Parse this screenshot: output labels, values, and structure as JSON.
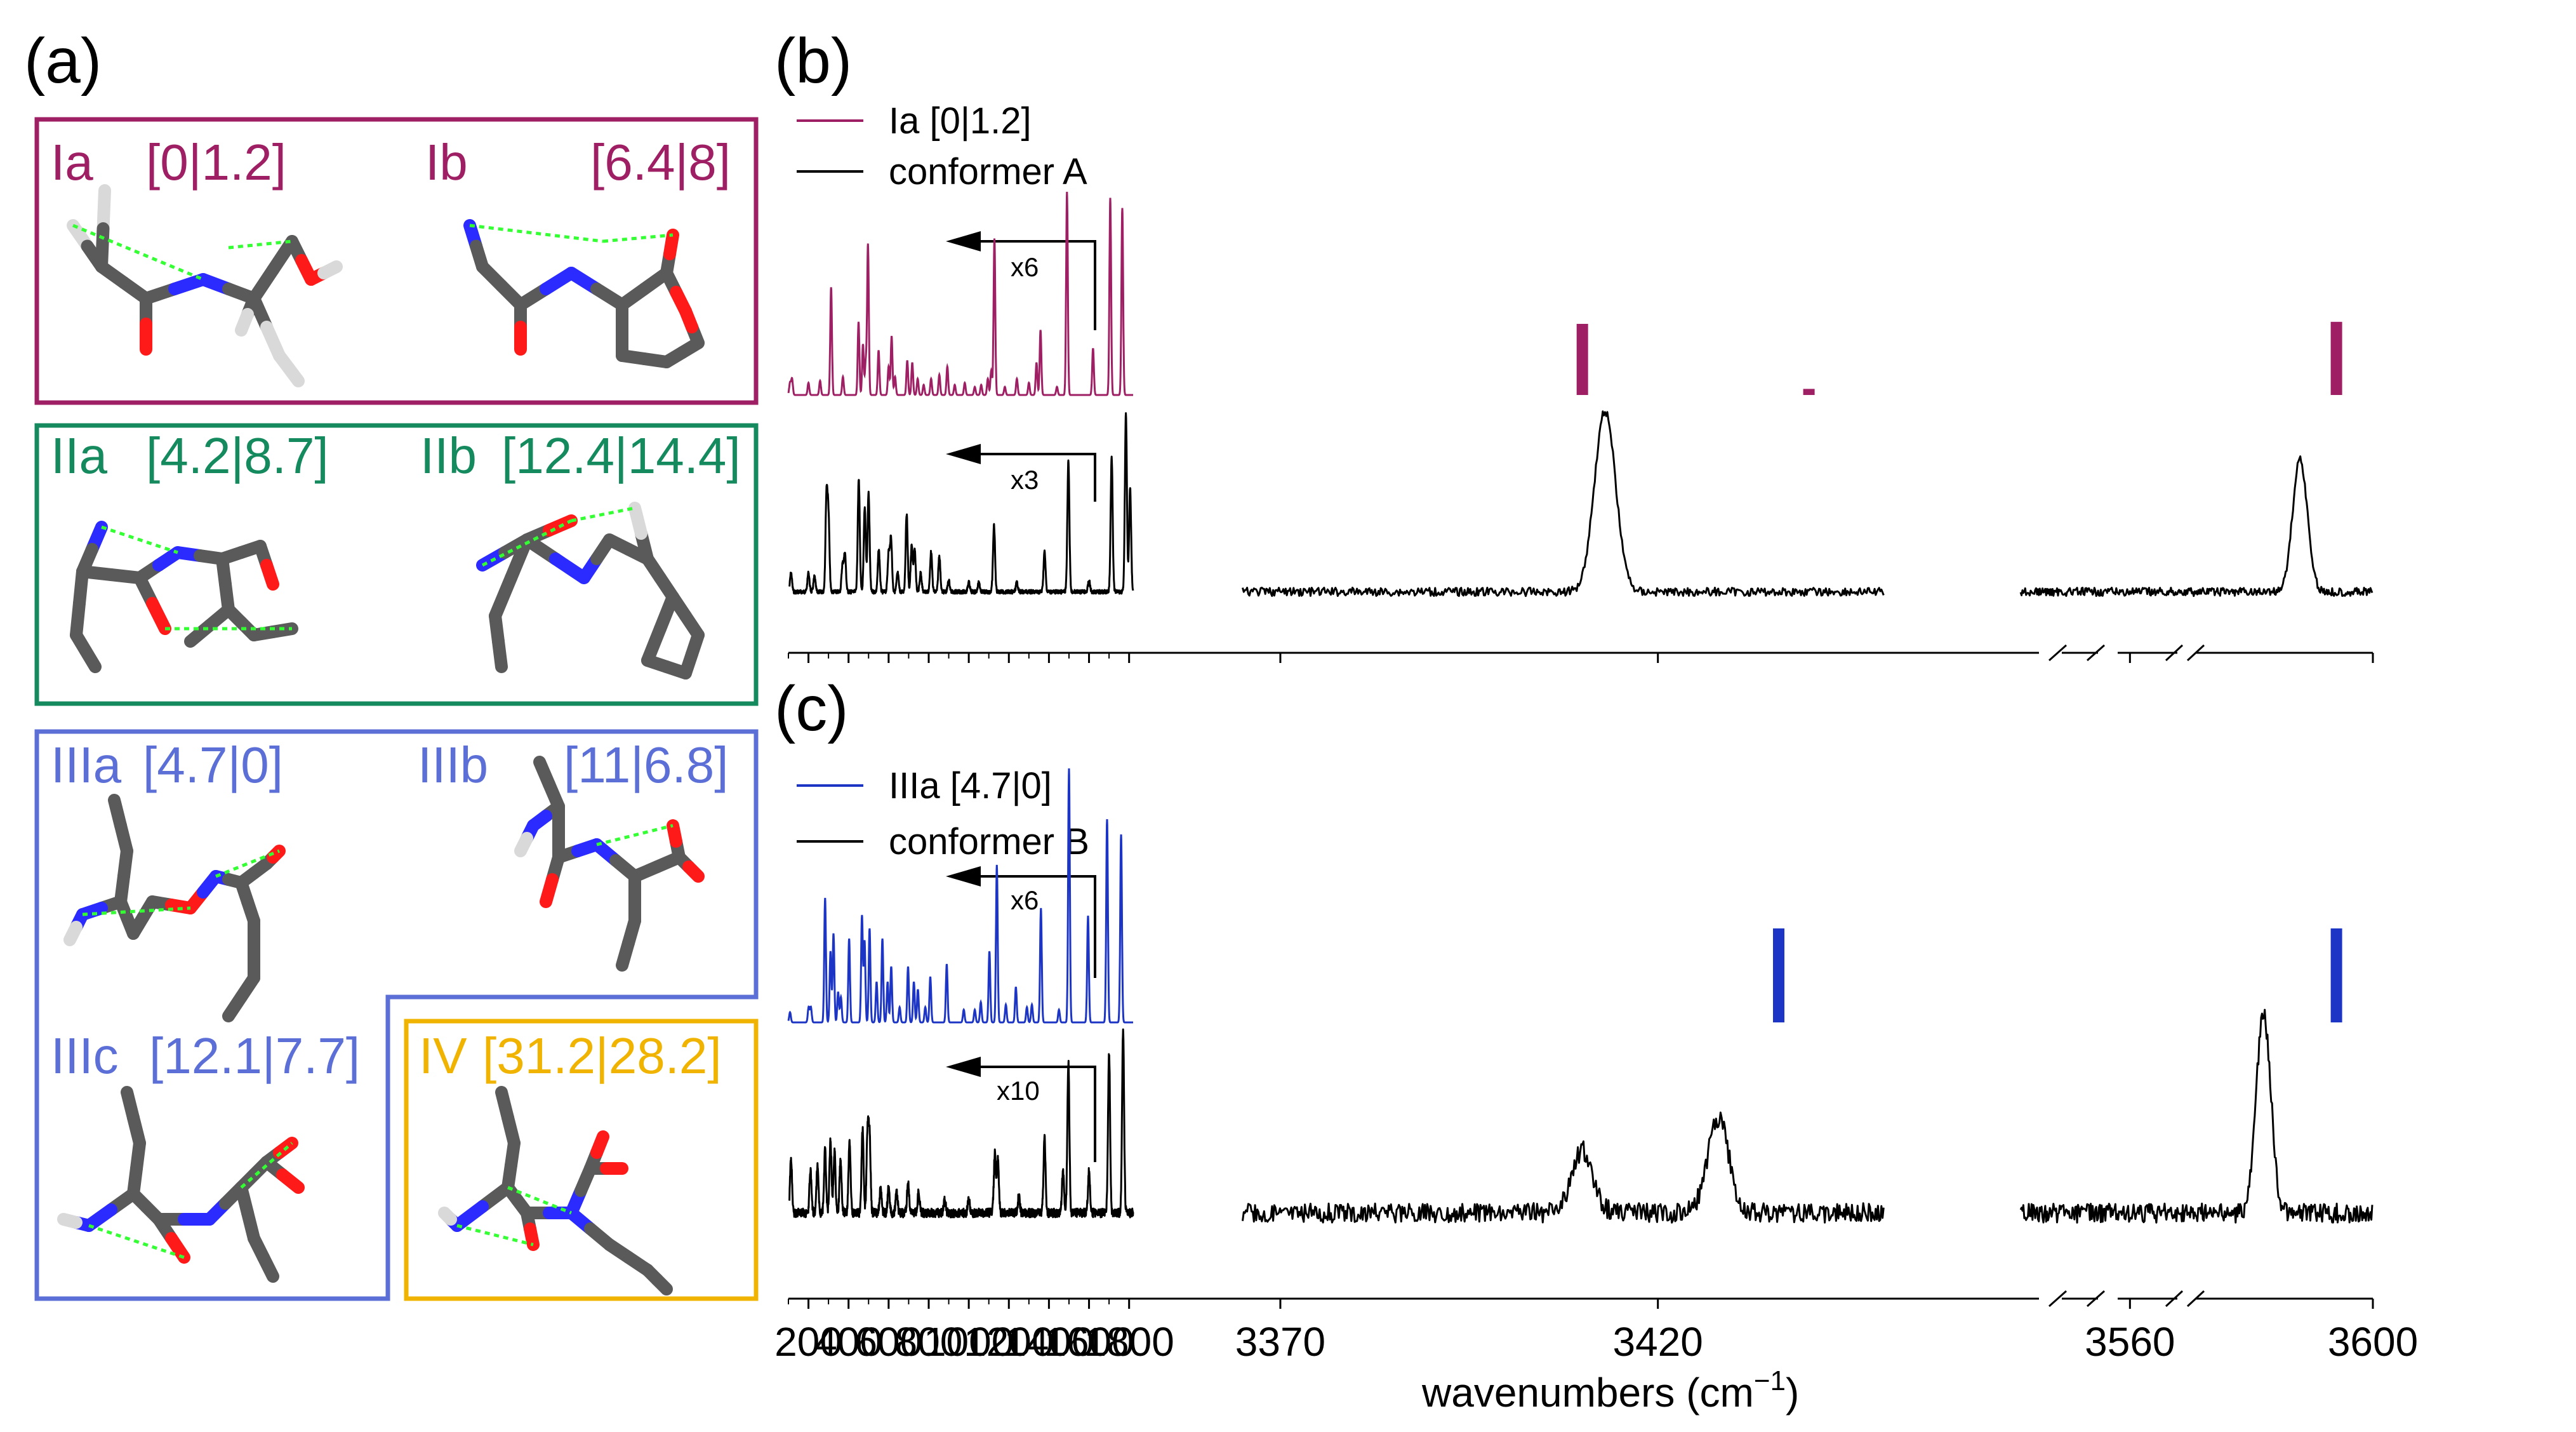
{
  "panels": {
    "a": "(a)",
    "b": "(b)",
    "c": "(c)"
  },
  "colors": {
    "magenta": "#9e1f63",
    "green": "#148a5e",
    "blue": "#1c35c4",
    "periwinkle": "#5c6fd6",
    "orange": "#f0b400",
    "black": "#000000"
  },
  "conformers": [
    {
      "id": "Ia",
      "name": "Ia",
      "energies": "[0|1.2]"
    },
    {
      "id": "Ib",
      "name": "Ib",
      "energies": "[6.4|8]"
    },
    {
      "id": "IIa",
      "name": "IIa",
      "energies": "[4.2|8.7]"
    },
    {
      "id": "IIb",
      "name": "IIb",
      "energies": "[12.4|14.4]"
    },
    {
      "id": "IIIa",
      "name": "IIIa",
      "energies": "[4.7|0]"
    },
    {
      "id": "IIIb",
      "name": "IIIb",
      "energies": "[11|6.8]"
    },
    {
      "id": "IIIc",
      "name": "IIIc",
      "energies": "[12.1|7.7]"
    },
    {
      "id": "IV",
      "name": "IV",
      "energies": "[31.2|28.2]"
    }
  ],
  "legend_b": {
    "calc": "Ia [0|1.2]",
    "exp": "conformer A"
  },
  "legend_c": {
    "calc": "IIIa [4.7|0]",
    "exp": "conformer B"
  },
  "scales": {
    "b_calc": "x6",
    "b_exp": "x3",
    "c_calc": "x6",
    "c_exp": "x10"
  },
  "axis": {
    "xlabel_main": "wavenumbers (cm",
    "xlabel_sup": "−1",
    "xlabel_close": ")",
    "segments": [
      {
        "range": [
          100,
          1820
        ],
        "ticks": [
          200,
          400,
          600,
          800,
          1000,
          1200,
          1400,
          1600,
          1800
        ]
      },
      {
        "range": [
          3360,
          3455
        ],
        "ticks": [
          3370,
          3420
        ]
      },
      {
        "range": [
          3540,
          3600
        ],
        "ticks": [
          3560,
          3600
        ]
      }
    ]
  },
  "chart_data": [
    {
      "type": "line",
      "panel": "b",
      "title": "",
      "xlabel": "wavenumbers (cm−1)",
      "ylabel": "",
      "series": [
        {
          "name": "Ia [0|1.2]",
          "role": "calc",
          "scale_factor_below_517": 6,
          "peaks": [
            [
              108,
              0.06
            ],
            [
              118,
              0.08
            ],
            [
              200,
              0.06
            ],
            [
              258,
              0.07
            ],
            [
              313,
              0.53
            ],
            [
              372,
              0.09
            ],
            [
              450,
              0.36
            ],
            [
              472,
              0.25
            ],
            [
              486,
              0.16
            ],
            [
              497,
              0.74
            ],
            [
              550,
              0.22
            ],
            [
              600,
              0.14
            ],
            [
              615,
              0.29
            ],
            [
              632,
              0.09
            ],
            [
              693,
              0.17
            ],
            [
              718,
              0.16
            ],
            [
              745,
              0.08
            ],
            [
              775,
              0.05
            ],
            [
              812,
              0.08
            ],
            [
              853,
              0.1
            ],
            [
              893,
              0.14
            ],
            [
              930,
              0.05
            ],
            [
              980,
              0.06
            ],
            [
              1030,
              0.04
            ],
            [
              1062,
              0.05
            ],
            [
              1095,
              0.08
            ],
            [
              1112,
              0.12
            ],
            [
              1128,
              0.77
            ],
            [
              1180,
              0.04
            ],
            [
              1240,
              0.08
            ],
            [
              1300,
              0.06
            ],
            [
              1338,
              0.16
            ],
            [
              1358,
              0.32
            ],
            [
              1440,
              0.04
            ],
            [
              1490,
              1.0
            ],
            [
              1620,
              0.23
            ],
            [
              1706,
              0.97
            ],
            [
              1766,
              0.92
            ],
            [
              3410,
              0.35
            ],
            [
              3440,
              0.03
            ],
            [
              3594,
              0.36
            ]
          ]
        },
        {
          "name": "conformer A",
          "role": "exp",
          "scale_factor_below_517": 3,
          "peaks": [
            [
              113,
              0.1
            ],
            [
              200,
              0.1
            ],
            [
              230,
              0.08
            ],
            [
              290,
              0.5
            ],
            [
              300,
              0.38
            ],
            [
              370,
              0.14
            ],
            [
              382,
              0.2
            ],
            [
              451,
              0.59
            ],
            [
              481,
              0.44
            ],
            [
              500,
              0.52
            ],
            [
              551,
              0.22
            ],
            [
              600,
              0.2
            ],
            [
              612,
              0.28
            ],
            [
              645,
              0.1
            ],
            [
              690,
              0.41
            ],
            [
              715,
              0.24
            ],
            [
              730,
              0.22
            ],
            [
              760,
              0.1
            ],
            [
              812,
              0.21
            ],
            [
              853,
              0.19
            ],
            [
              900,
              0.06
            ],
            [
              1000,
              0.05
            ],
            [
              1050,
              0.05
            ],
            [
              1126,
              0.35
            ],
            [
              1240,
              0.05
            ],
            [
              1378,
              0.21
            ],
            [
              1497,
              0.69
            ],
            [
              1600,
              0.06
            ],
            [
              1713,
              0.71
            ],
            [
              1784,
              0.93
            ],
            [
              1805,
              0.55
            ],
            [
              3413,
              0.95
            ],
            [
              3588,
              0.7
            ]
          ]
        }
      ]
    },
    {
      "type": "line",
      "panel": "c",
      "title": "",
      "xlabel": "wavenumbers (cm−1)",
      "ylabel": "",
      "series": [
        {
          "name": "IIIa [4.7|0]",
          "role": "calc",
          "scale_factor_below_517": 6,
          "peaks": [
            [
              108,
              0.04
            ],
            [
              201,
              0.06
            ],
            [
              212,
              0.06
            ],
            [
              283,
              0.49
            ],
            [
              310,
              0.28
            ],
            [
              325,
              0.35
            ],
            [
              348,
              0.12
            ],
            [
              362,
              0.1
            ],
            [
              403,
              0.33
            ],
            [
              467,
              0.42
            ],
            [
              480,
              0.32
            ],
            [
              505,
              0.37
            ],
            [
              540,
              0.16
            ],
            [
              569,
              0.33
            ],
            [
              595,
              0.16
            ],
            [
              613,
              0.22
            ],
            [
              655,
              0.06
            ],
            [
              697,
              0.22
            ],
            [
              726,
              0.16
            ],
            [
              746,
              0.13
            ],
            [
              783,
              0.06
            ],
            [
              808,
              0.18
            ],
            [
              890,
              0.23
            ],
            [
              975,
              0.05
            ],
            [
              1030,
              0.05
            ],
            [
              1060,
              0.08
            ],
            [
              1103,
              0.28
            ],
            [
              1140,
              0.62
            ],
            [
              1185,
              0.07
            ],
            [
              1235,
              0.14
            ],
            [
              1290,
              0.06
            ],
            [
              1315,
              0.07
            ],
            [
              1360,
              0.45
            ],
            [
              1450,
              0.05
            ],
            [
              1500,
              1.0
            ],
            [
              1595,
              0.42
            ],
            [
              1690,
              0.8
            ],
            [
              1760,
              0.74
            ],
            [
              3436,
              0.37
            ],
            [
              3594,
              0.37
            ]
          ]
        },
        {
          "name": "conformer B",
          "role": "exp",
          "scale_factor_below_517": 10,
          "peaks": [
            [
              113,
              0.26
            ],
            [
              210,
              0.2
            ],
            [
              245,
              0.22
            ],
            [
              283,
              0.3
            ],
            [
              310,
              0.35
            ],
            [
              330,
              0.3
            ],
            [
              360,
              0.25
            ],
            [
              405,
              0.35
            ],
            [
              470,
              0.4
            ],
            [
              495,
              0.38
            ],
            [
              505,
              0.35
            ],
            [
              560,
              0.12
            ],
            [
              600,
              0.12
            ],
            [
              640,
              0.1
            ],
            [
              697,
              0.15
            ],
            [
              750,
              0.1
            ],
            [
              880,
              0.06
            ],
            [
              1000,
              0.06
            ],
            [
              1130,
              0.28
            ],
            [
              1145,
              0.25
            ],
            [
              1250,
              0.08
            ],
            [
              1378,
              0.36
            ],
            [
              1470,
              0.2
            ],
            [
              1497,
              0.72
            ],
            [
              1600,
              0.2
            ],
            [
              1700,
              0.77
            ],
            [
              1770,
              0.87
            ],
            [
              3410,
              0.3
            ],
            [
              3428,
              0.45
            ],
            [
              3582,
              0.95
            ]
          ]
        }
      ]
    }
  ]
}
